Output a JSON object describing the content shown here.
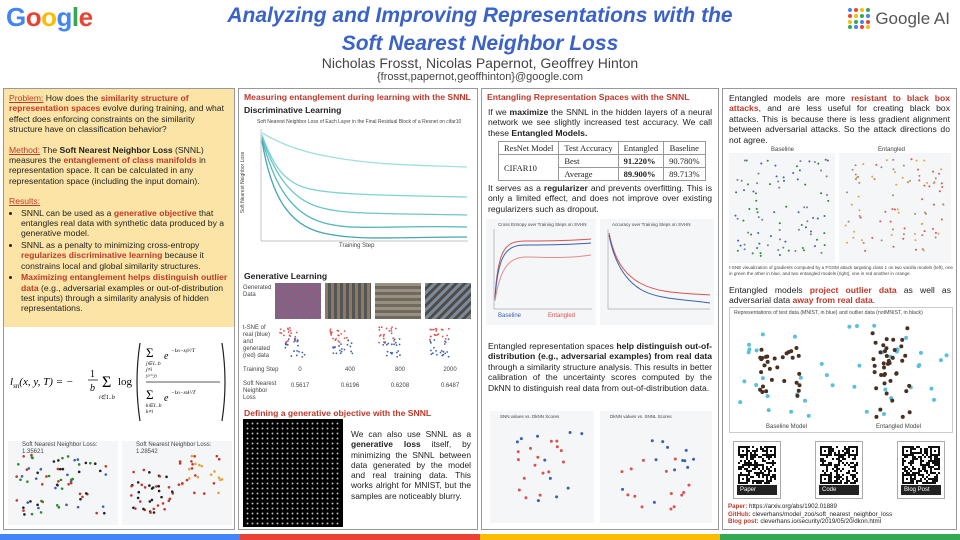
{
  "header": {
    "logo_letters": [
      {
        "ch": "G",
        "color": "#4285F4"
      },
      {
        "ch": "o",
        "color": "#EA4335"
      },
      {
        "ch": "o",
        "color": "#FBBC05"
      },
      {
        "ch": "g",
        "color": "#4285F4"
      },
      {
        "ch": "l",
        "color": "#34A853"
      },
      {
        "ch": "e",
        "color": "#EA4335"
      }
    ],
    "title_line1": "Analyzing and Improving Representations with the",
    "title_line2": "Soft Nearest Neighbor Loss",
    "authors": "Nicholas Frosst, Nicolas Papernot, Geoffrey Hinton",
    "emails": "{frosst,papernot,geoffhinton}@google.com",
    "google_ai": "Google AI"
  },
  "col1": {
    "problem_label": "Problem:",
    "problem_pre": " How does the ",
    "problem_bold": "similarity structure of representation spaces",
    "problem_post": " evolve during training, and what effect does enforcing constraints on the similarity structure have on classification behavior?",
    "method_label": "Method:",
    "method_pre": " The ",
    "method_bold1": "Soft Nearest Neighbor Loss",
    "method_mid": " (SNNL) measures the ",
    "method_bold2": "entanglement of class manifolds",
    "method_post": " in representation space. It can be calculated in any representation space (including the input domain).",
    "results_label": "Results:",
    "r1_pre": "SNNL can be used as a ",
    "r1_bold": "generative objective",
    "r1_post": " that entangles real data with synthetic data produced by a generative model.",
    "r2_pre": "SNNL as a penalty to minimizing cross-entropy ",
    "r2_bold": "regularizes discriminative learning",
    "r2_post": " because it constrains local and global similarity structures.",
    "r3_bold": "Maximizing entanglement helps distinguish outlier data",
    "r3_post": " (e.g., adversarial examples or out-of-distribution test inputs) through a similarity analysis of hidden representations.",
    "plot_left_title": "Soft Nearest Neighbor Loss: 1.35621",
    "plot_right_title": "Soft Nearest Neighbor Loss: 1.28542"
  },
  "col2": {
    "sec1": "Measuring entanglement during learning with the SNNL",
    "disc": "Discriminative Learning",
    "disc_plot_title": "Soft Nearest Neighbor Loss of Each Layer in the Final Residual Block of a Resnet on cifar10",
    "disc_xlabel": "Training Step",
    "disc_ylabel": "Soft Nearest Neighbor Loss",
    "gen": "Generative Learning",
    "gen_row1": "Generated Data",
    "gen_row2": "t-SNE of real (blue) and generated (red) data",
    "gen_row3": "Training Step",
    "gen_row4": "Soft Nearest Neighbor Loss",
    "steps": [
      "0",
      "400",
      "800",
      "2000"
    ],
    "losses": [
      "0.5617",
      "0.6196",
      "0.6208",
      "0.6487"
    ],
    "sec2": "Defining a generative objective with the SNNL",
    "gen_text_pre": "We can also use SNNL as a ",
    "gen_text_bold": "generative loss",
    "gen_text_post": " itself, by minimizing the SNNL between data generated by the model and real training data. This works alright for MNIST, but the samples are noticeably blurry."
  },
  "col3": {
    "sec": "Entangling Representation Spaces with the SNNL",
    "p1_pre": "If we ",
    "p1_b1": "maximize",
    "p1_mid": " the SNNL in the hidden layers of a neural network we see slightly increased test accuracy. We call these ",
    "p1_b2": "Entangled Models.",
    "table": {
      "headers": [
        "ResNet Model",
        "Test Accuracy",
        "Entangled",
        "Baseline"
      ],
      "dataset": "CIFAR10",
      "rows": [
        {
          "metric": "Best",
          "entangled": "91.220%",
          "baseline": "90.780%"
        },
        {
          "metric": "Average",
          "entangled": "89.900%",
          "baseline": "89.713%"
        }
      ]
    },
    "p2_pre": "It serves as a ",
    "p2_b": "regularizer",
    "p2_post": " and prevents overfitting. This is only a limited effect, and does not improve over existing regularizers such as dropout.",
    "plot1_title": "Cross Entropy over Training Steps on SVHN",
    "plot2_title": "Accuracy over Training Steps on SVHN",
    "p3_pre": "Entangled representation spaces ",
    "p3_b": "help distinguish out-of-distribution (e.g., adversarial examples) from real data",
    "p3_post": " through a similarity structure analysis. This results in better calibration of the uncertainty scores computed by the DkNN to distinguish real data from out-of-distribution data.",
    "plot3_title": "SNN values vs. DkNN Scores",
    "plot4_title": "DkNN values vs. SNNL Scores",
    "legend_a": "Baseline",
    "legend_b": "Entangled"
  },
  "col4": {
    "p1_pre": "Entangled models are more ",
    "p1_b": "resistant to black box attacks",
    "p1_post": ", and are less useful for creating black box attacks. This is because there is less gradient alignment between adversarial attacks. So the attack directions do not agree.",
    "img_baseline": "Baseline",
    "img_entangled": "Entangled",
    "caption": "t-SNE visualization of gradients computed by a FGSM attack targeting class 1 on two vanilla models (left), one in green the other in blue, and two entangled models (right), one in red another in orange.",
    "p2_pre": "Entangled models ",
    "p2_b1": "project outlier data",
    "p2_mid": " as well as adversarial data ",
    "p2_b2": "away from real data",
    "p2_post": ".",
    "outlier_title": "Representations of test data (MNIST, in blue) and outlier data (notMNIST, in black)",
    "outlier_left": "Baseline Model",
    "outlier_right": "Entangled Model",
    "qr_tags": [
      "Paper",
      "Code",
      "Blog Post"
    ],
    "paper_label": "Paper:",
    "paper_url": "https://arxiv.org/abs/1902.01889",
    "github_label": "GitHub:",
    "github_url": "cleverhans/model_zoo/soft_nearest_neighbor_loss",
    "blog_label": "Blog post:",
    "blog_url": "cleverhans.io/security/2019/05/20/dknn.html"
  }
}
